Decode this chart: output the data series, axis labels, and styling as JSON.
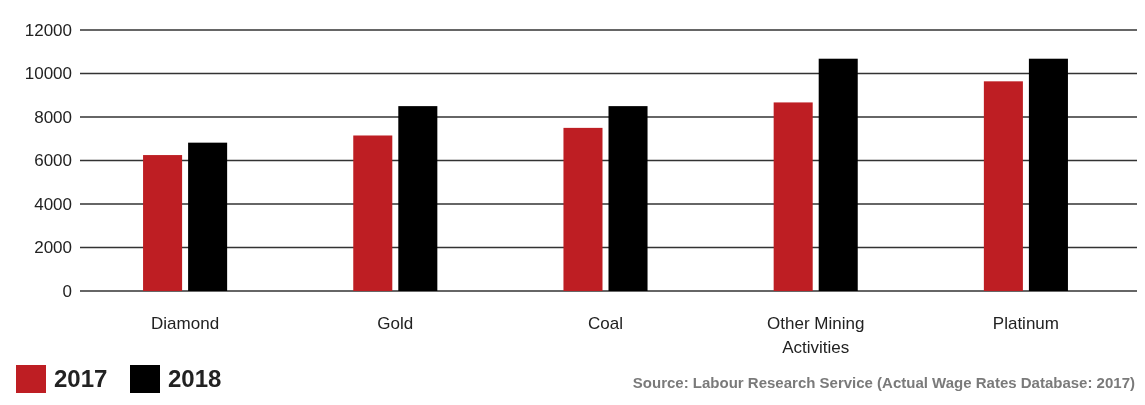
{
  "chart_data": {
    "type": "bar",
    "categories": [
      "Diamond",
      "Gold",
      "Coal",
      "Other Mining Activities",
      "Platinum"
    ],
    "series": [
      {
        "name": "2017",
        "color": "#be1e23",
        "values": [
          6250,
          7150,
          7500,
          8670,
          9640
        ]
      },
      {
        "name": "2018",
        "color": "#000000",
        "values": [
          6820,
          8500,
          8500,
          10680,
          10680
        ]
      }
    ],
    "ylim": [
      0,
      12000
    ],
    "yticks": [
      0,
      2000,
      4000,
      6000,
      8000,
      10000,
      12000
    ],
    "grid": "y",
    "legend": "bottom left",
    "annotations": [
      "Source: Labour Research Service (Actual Wage Rates Database: 2017)"
    ]
  }
}
